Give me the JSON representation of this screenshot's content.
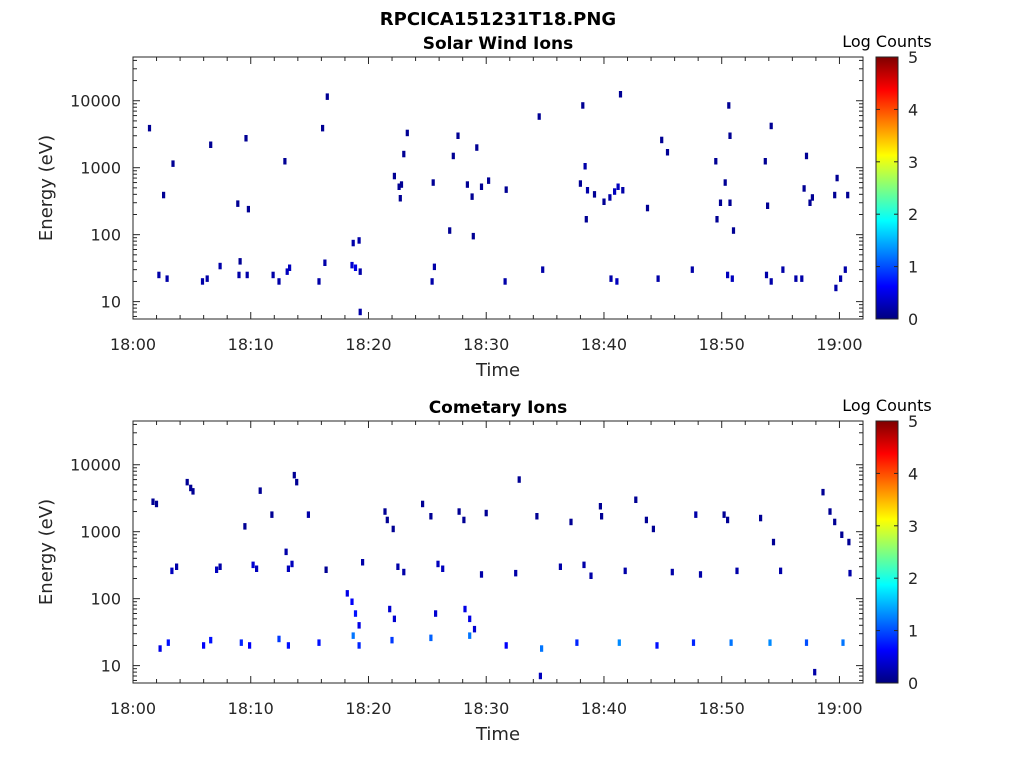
{
  "figure_title": "RPCICA151231T18.PNG",
  "chart_data": [
    {
      "type": "heatmap",
      "title": "Solar Wind Ions",
      "xlabel": "Time",
      "ylabel": "Energy (eV)",
      "x_ticks": [
        "18:00",
        "18:10",
        "18:20",
        "18:30",
        "18:40",
        "18:50",
        "19:00"
      ],
      "xlim": [
        "18:00",
        "19:02"
      ],
      "y_scale": "log",
      "y_ticks": [
        10,
        100,
        1000,
        10000
      ],
      "ylim": [
        5.5,
        45000
      ],
      "colorbar": {
        "label": "Log Counts",
        "min": 0,
        "max": 5,
        "ticks": [
          0,
          1,
          2,
          3,
          4,
          5
        ],
        "colormap": "jet"
      },
      "cells": [
        {
          "t": 1.4,
          "e": 3900,
          "c": 0.1
        },
        {
          "t": 2.6,
          "e": 390,
          "c": 0.1
        },
        {
          "t": 2.2,
          "e": 25,
          "c": 0.2
        },
        {
          "t": 2.9,
          "e": 22,
          "c": 0.2
        },
        {
          "t": 3.4,
          "e": 1150,
          "c": 0.1
        },
        {
          "t": 5.9,
          "e": 20,
          "c": 0.2
        },
        {
          "t": 6.3,
          "e": 22,
          "c": 0.2
        },
        {
          "t": 6.6,
          "e": 2200,
          "c": 0.1
        },
        {
          "t": 7.4,
          "e": 34,
          "c": 0.2
        },
        {
          "t": 8.9,
          "e": 290,
          "c": 0.1
        },
        {
          "t": 9.0,
          "e": 25,
          "c": 0.2
        },
        {
          "t": 9.1,
          "e": 40,
          "c": 0.1
        },
        {
          "t": 9.6,
          "e": 2750,
          "c": 0.1
        },
        {
          "t": 9.8,
          "e": 240,
          "c": 0.1
        },
        {
          "t": 9.7,
          "e": 25,
          "c": 0.2
        },
        {
          "t": 11.9,
          "e": 25,
          "c": 0.2
        },
        {
          "t": 12.4,
          "e": 20,
          "c": 0.2
        },
        {
          "t": 12.9,
          "e": 1250,
          "c": 0.1
        },
        {
          "t": 13.1,
          "e": 28,
          "c": 0.3
        },
        {
          "t": 13.3,
          "e": 32,
          "c": 0.3
        },
        {
          "t": 15.8,
          "e": 20,
          "c": 0.2
        },
        {
          "t": 16.1,
          "e": 3900,
          "c": 0.1
        },
        {
          "t": 16.3,
          "e": 38,
          "c": 0.2
        },
        {
          "t": 16.5,
          "e": 11500,
          "c": 0.1
        },
        {
          "t": 18.6,
          "e": 35,
          "c": 0.4
        },
        {
          "t": 18.9,
          "e": 32,
          "c": 0.5
        },
        {
          "t": 18.7,
          "e": 75,
          "c": 0.2
        },
        {
          "t": 19.2,
          "e": 82,
          "c": 0.2
        },
        {
          "t": 19.3,
          "e": 28,
          "c": 0.2
        },
        {
          "t": 19.3,
          "e": 7,
          "c": 0.2
        },
        {
          "t": 22.2,
          "e": 750,
          "c": 0.1
        },
        {
          "t": 22.6,
          "e": 520,
          "c": 0.1
        },
        {
          "t": 22.7,
          "e": 350,
          "c": 0.1
        },
        {
          "t": 23.0,
          "e": 1600,
          "c": 0.1
        },
        {
          "t": 23.3,
          "e": 3300,
          "c": 0.1
        },
        {
          "t": 22.8,
          "e": 560,
          "c": 0.1
        },
        {
          "t": 25.4,
          "e": 20,
          "c": 0.2
        },
        {
          "t": 25.6,
          "e": 33,
          "c": 0.2
        },
        {
          "t": 25.5,
          "e": 600,
          "c": 0.1
        },
        {
          "t": 26.9,
          "e": 115,
          "c": 0.1
        },
        {
          "t": 27.2,
          "e": 1500,
          "c": 0.1
        },
        {
          "t": 27.6,
          "e": 3000,
          "c": 0.1
        },
        {
          "t": 28.4,
          "e": 560,
          "c": 0.1
        },
        {
          "t": 28.8,
          "e": 370,
          "c": 0.1
        },
        {
          "t": 28.9,
          "e": 95,
          "c": 0.1
        },
        {
          "t": 29.2,
          "e": 2000,
          "c": 0.1
        },
        {
          "t": 29.6,
          "e": 520,
          "c": 0.1
        },
        {
          "t": 30.2,
          "e": 640,
          "c": 0.1
        },
        {
          "t": 31.6,
          "e": 20,
          "c": 0.2
        },
        {
          "t": 31.7,
          "e": 470,
          "c": 0.1
        },
        {
          "t": 34.5,
          "e": 5800,
          "c": 0.1
        },
        {
          "t": 34.8,
          "e": 30,
          "c": 0.2
        },
        {
          "t": 38.0,
          "e": 580,
          "c": 0.1
        },
        {
          "t": 38.2,
          "e": 8500,
          "c": 0.1
        },
        {
          "t": 38.4,
          "e": 1050,
          "c": 0.2
        },
        {
          "t": 38.6,
          "e": 460,
          "c": 0.2
        },
        {
          "t": 38.5,
          "e": 170,
          "c": 0.1
        },
        {
          "t": 39.2,
          "e": 400,
          "c": 0.1
        },
        {
          "t": 40.0,
          "e": 310,
          "c": 0.1
        },
        {
          "t": 40.5,
          "e": 360,
          "c": 0.2
        },
        {
          "t": 40.9,
          "e": 440,
          "c": 0.3
        },
        {
          "t": 41.2,
          "e": 520,
          "c": 0.3
        },
        {
          "t": 41.6,
          "e": 460,
          "c": 0.2
        },
        {
          "t": 41.4,
          "e": 12500,
          "c": 0.1
        },
        {
          "t": 40.6,
          "e": 22,
          "c": 0.2
        },
        {
          "t": 41.1,
          "e": 20,
          "c": 0.3
        },
        {
          "t": 43.7,
          "e": 250,
          "c": 0.1
        },
        {
          "t": 44.6,
          "e": 22,
          "c": 0.2
        },
        {
          "t": 44.9,
          "e": 2600,
          "c": 0.1
        },
        {
          "t": 45.4,
          "e": 1700,
          "c": 0.1
        },
        {
          "t": 47.5,
          "e": 30,
          "c": 0.2
        },
        {
          "t": 49.5,
          "e": 1250,
          "c": 0.1
        },
        {
          "t": 49.6,
          "e": 170,
          "c": 0.1
        },
        {
          "t": 49.9,
          "e": 300,
          "c": 0.1
        },
        {
          "t": 50.3,
          "e": 600,
          "c": 0.1
        },
        {
          "t": 50.6,
          "e": 8500,
          "c": 0.1
        },
        {
          "t": 50.7,
          "e": 3000,
          "c": 0.1
        },
        {
          "t": 50.7,
          "e": 300,
          "c": 0.1
        },
        {
          "t": 51.0,
          "e": 115,
          "c": 0.1
        },
        {
          "t": 50.5,
          "e": 25,
          "c": 0.3
        },
        {
          "t": 50.9,
          "e": 22,
          "c": 0.3
        },
        {
          "t": 53.7,
          "e": 1250,
          "c": 0.1
        },
        {
          "t": 53.9,
          "e": 270,
          "c": 0.1
        },
        {
          "t": 54.2,
          "e": 4200,
          "c": 0.1
        },
        {
          "t": 53.8,
          "e": 25,
          "c": 0.2
        },
        {
          "t": 54.2,
          "e": 20,
          "c": 0.2
        },
        {
          "t": 55.2,
          "e": 30,
          "c": 0.2
        },
        {
          "t": 56.3,
          "e": 22,
          "c": 0.2
        },
        {
          "t": 56.8,
          "e": 22,
          "c": 0.2
        },
        {
          "t": 57.0,
          "e": 490,
          "c": 0.1
        },
        {
          "t": 57.2,
          "e": 1500,
          "c": 0.1
        },
        {
          "t": 57.5,
          "e": 300,
          "c": 0.1
        },
        {
          "t": 57.7,
          "e": 360,
          "c": 0.1
        },
        {
          "t": 59.8,
          "e": 700,
          "c": 0.1
        },
        {
          "t": 59.6,
          "e": 390,
          "c": 0.1
        },
        {
          "t": 60.7,
          "e": 390,
          "c": 0.1
        },
        {
          "t": 59.7,
          "e": 16,
          "c": 0.2
        },
        {
          "t": 60.1,
          "e": 22,
          "c": 0.2
        },
        {
          "t": 60.5,
          "e": 30,
          "c": 0.2
        }
      ]
    },
    {
      "type": "heatmap",
      "title": "Cometary Ions",
      "xlabel": "Time",
      "ylabel": "Energy (eV)",
      "x_ticks": [
        "18:00",
        "18:10",
        "18:20",
        "18:30",
        "18:40",
        "18:50",
        "19:00"
      ],
      "xlim": [
        "18:00",
        "19:02"
      ],
      "y_scale": "log",
      "y_ticks": [
        10,
        100,
        1000,
        10000
      ],
      "ylim": [
        5.5,
        45000
      ],
      "colorbar": {
        "label": "Log Counts",
        "min": 0,
        "max": 5,
        "ticks": [
          0,
          1,
          2,
          3,
          4,
          5
        ],
        "colormap": "jet"
      },
      "cells": [
        {
          "t": 1.7,
          "e": 2800,
          "c": 0.1
        },
        {
          "t": 2.0,
          "e": 2600,
          "c": 0.1
        },
        {
          "t": 4.6,
          "e": 5500,
          "c": 0.1
        },
        {
          "t": 4.9,
          "e": 4500,
          "c": 0.1
        },
        {
          "t": 5.1,
          "e": 4000,
          "c": 0.1
        },
        {
          "t": 9.5,
          "e": 1200,
          "c": 0.1
        },
        {
          "t": 10.8,
          "e": 4100,
          "c": 0.1
        },
        {
          "t": 11.8,
          "e": 1800,
          "c": 0.1
        },
        {
          "t": 13.7,
          "e": 7000,
          "c": 0.1
        },
        {
          "t": 13.9,
          "e": 5500,
          "c": 0.1
        },
        {
          "t": 14.9,
          "e": 1800,
          "c": 0.2
        },
        {
          "t": 16.4,
          "e": 270,
          "c": 0.1
        },
        {
          "t": 21.4,
          "e": 2000,
          "c": 0.1
        },
        {
          "t": 21.6,
          "e": 1500,
          "c": 0.1
        },
        {
          "t": 22.1,
          "e": 1100,
          "c": 0.1
        },
        {
          "t": 24.6,
          "e": 2600,
          "c": 0.1
        },
        {
          "t": 25.3,
          "e": 1700,
          "c": 0.1
        },
        {
          "t": 27.7,
          "e": 2000,
          "c": 0.1
        },
        {
          "t": 28.1,
          "e": 1500,
          "c": 0.1
        },
        {
          "t": 30.0,
          "e": 1900,
          "c": 0.1
        },
        {
          "t": 32.8,
          "e": 6000,
          "c": 0.1
        },
        {
          "t": 34.3,
          "e": 1700,
          "c": 0.1
        },
        {
          "t": 37.2,
          "e": 1400,
          "c": 0.1
        },
        {
          "t": 39.7,
          "e": 2400,
          "c": 0.1
        },
        {
          "t": 39.8,
          "e": 1700,
          "c": 0.1
        },
        {
          "t": 42.7,
          "e": 3000,
          "c": 0.1
        },
        {
          "t": 43.6,
          "e": 1500,
          "c": 0.1
        },
        {
          "t": 44.2,
          "e": 1100,
          "c": 0.1
        },
        {
          "t": 47.8,
          "e": 1800,
          "c": 0.2
        },
        {
          "t": 50.2,
          "e": 1800,
          "c": 0.1
        },
        {
          "t": 50.5,
          "e": 1500,
          "c": 0.1
        },
        {
          "t": 53.3,
          "e": 1600,
          "c": 0.1
        },
        {
          "t": 54.4,
          "e": 700,
          "c": 0.1
        },
        {
          "t": 58.6,
          "e": 3900,
          "c": 0.1
        },
        {
          "t": 59.2,
          "e": 2000,
          "c": 0.1
        },
        {
          "t": 59.6,
          "e": 1400,
          "c": 0.1
        },
        {
          "t": 60.2,
          "e": 900,
          "c": 0.1
        },
        {
          "t": 60.8,
          "e": 700,
          "c": 0.1
        },
        {
          "t": 3.3,
          "e": 260,
          "c": 0.3
        },
        {
          "t": 3.7,
          "e": 300,
          "c": 0.2
        },
        {
          "t": 7.1,
          "e": 270,
          "c": 0.3
        },
        {
          "t": 7.4,
          "e": 300,
          "c": 0.2
        },
        {
          "t": 10.2,
          "e": 320,
          "c": 0.4
        },
        {
          "t": 10.5,
          "e": 280,
          "c": 0.3
        },
        {
          "t": 13.2,
          "e": 280,
          "c": 0.3
        },
        {
          "t": 13.5,
          "e": 330,
          "c": 0.3
        },
        {
          "t": 13.0,
          "e": 500,
          "c": 0.2
        },
        {
          "t": 19.5,
          "e": 350,
          "c": 0.2
        },
        {
          "t": 22.5,
          "e": 300,
          "c": 0.2
        },
        {
          "t": 23.0,
          "e": 250,
          "c": 0.2
        },
        {
          "t": 25.9,
          "e": 330,
          "c": 0.3
        },
        {
          "t": 26.3,
          "e": 280,
          "c": 0.3
        },
        {
          "t": 29.6,
          "e": 230,
          "c": 0.2
        },
        {
          "t": 32.5,
          "e": 240,
          "c": 0.2
        },
        {
          "t": 36.3,
          "e": 300,
          "c": 0.2
        },
        {
          "t": 38.3,
          "e": 320,
          "c": 0.2
        },
        {
          "t": 38.9,
          "e": 220,
          "c": 0.2
        },
        {
          "t": 41.8,
          "e": 260,
          "c": 0.2
        },
        {
          "t": 45.8,
          "e": 250,
          "c": 0.2
        },
        {
          "t": 48.2,
          "e": 230,
          "c": 0.2
        },
        {
          "t": 51.3,
          "e": 260,
          "c": 0.2
        },
        {
          "t": 55.0,
          "e": 260,
          "c": 0.2
        },
        {
          "t": 60.9,
          "e": 240,
          "c": 0.2
        },
        {
          "t": 18.2,
          "e": 120,
          "c": 0.5
        },
        {
          "t": 18.6,
          "e": 90,
          "c": 0.6
        },
        {
          "t": 18.9,
          "e": 60,
          "c": 0.7
        },
        {
          "t": 19.2,
          "e": 40,
          "c": 0.5
        },
        {
          "t": 21.8,
          "e": 70,
          "c": 0.4
        },
        {
          "t": 22.2,
          "e": 50,
          "c": 0.4
        },
        {
          "t": 25.7,
          "e": 60,
          "c": 0.4
        },
        {
          "t": 28.2,
          "e": 70,
          "c": 0.5
        },
        {
          "t": 28.6,
          "e": 50,
          "c": 0.5
        },
        {
          "t": 29.0,
          "e": 35,
          "c": 0.4
        },
        {
          "t": 2.3,
          "e": 18,
          "c": 0.5
        },
        {
          "t": 3.0,
          "e": 22,
          "c": 0.7
        },
        {
          "t": 6.0,
          "e": 20,
          "c": 0.6
        },
        {
          "t": 6.6,
          "e": 24,
          "c": 0.7
        },
        {
          "t": 9.2,
          "e": 22,
          "c": 0.8
        },
        {
          "t": 9.9,
          "e": 20,
          "c": 0.6
        },
        {
          "t": 12.4,
          "e": 25,
          "c": 0.9
        },
        {
          "t": 13.2,
          "e": 20,
          "c": 0.7
        },
        {
          "t": 15.8,
          "e": 22,
          "c": 0.7
        },
        {
          "t": 18.7,
          "e": 28,
          "c": 1.2
        },
        {
          "t": 19.2,
          "e": 20,
          "c": 0.8
        },
        {
          "t": 22.0,
          "e": 24,
          "c": 0.9
        },
        {
          "t": 25.3,
          "e": 26,
          "c": 1.1
        },
        {
          "t": 28.6,
          "e": 28,
          "c": 1.2
        },
        {
          "t": 31.7,
          "e": 20,
          "c": 0.6
        },
        {
          "t": 34.7,
          "e": 18,
          "c": 1.2
        },
        {
          "t": 37.7,
          "e": 22,
          "c": 0.8
        },
        {
          "t": 41.3,
          "e": 22,
          "c": 1.3
        },
        {
          "t": 44.5,
          "e": 20,
          "c": 0.7
        },
        {
          "t": 47.6,
          "e": 22,
          "c": 0.8
        },
        {
          "t": 50.8,
          "e": 22,
          "c": 1.2
        },
        {
          "t": 54.1,
          "e": 22,
          "c": 1.3
        },
        {
          "t": 57.2,
          "e": 22,
          "c": 1.0
        },
        {
          "t": 60.3,
          "e": 22,
          "c": 1.2
        },
        {
          "t": 34.6,
          "e": 7,
          "c": 0.3
        },
        {
          "t": 57.9,
          "e": 8,
          "c": 0.2
        }
      ]
    }
  ]
}
